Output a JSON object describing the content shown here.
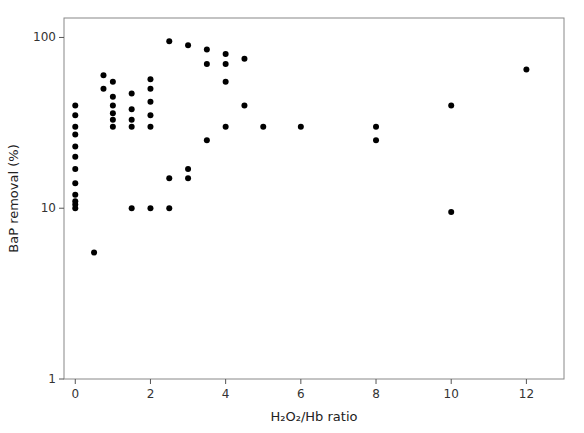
{
  "chart_data": {
    "type": "scatter",
    "x": [
      0,
      0,
      0,
      0,
      0,
      0,
      0,
      0,
      0,
      0,
      0,
      0,
      0.5,
      0.75,
      0.75,
      1.0,
      1.0,
      1.0,
      1.0,
      1.0,
      1.0,
      1.5,
      1.5,
      1.5,
      1.5,
      1.5,
      2.0,
      2.0,
      2.0,
      2.0,
      2.0,
      2.0,
      2.5,
      2.5,
      2.5,
      3.0,
      3.0,
      3.0,
      3.5,
      3.5,
      3.5,
      4.0,
      4.0,
      4.0,
      4.0,
      4.5,
      4.5,
      5.0,
      6.0,
      8.0,
      8.0,
      10.0,
      10.0,
      12.0
    ],
    "values": [
      10.0,
      10.5,
      11.0,
      12.0,
      14.0,
      17.0,
      20.0,
      23.0,
      27.0,
      30.0,
      35.0,
      40.0,
      5.5,
      50.0,
      60.0,
      30.0,
      33.0,
      36.0,
      40.0,
      45.0,
      55.0,
      10.0,
      30.0,
      33.0,
      38.0,
      47.0,
      10.0,
      30.0,
      35.0,
      42.0,
      50.0,
      57.0,
      10.0,
      15.0,
      95.0,
      15.0,
      17.0,
      90.0,
      25.0,
      70.0,
      85.0,
      30.0,
      55.0,
      70.0,
      80.0,
      40.0,
      75.0,
      30.0,
      30.0,
      25.0,
      30.0,
      9.5,
      40.0,
      65.0
    ],
    "xlabel": "H₂O₂/Hb ratio",
    "ylabel": "BaP removal (%)",
    "xlim": [
      -0.3,
      13
    ],
    "ylim": [
      1,
      130
    ],
    "xticks": [
      0,
      2,
      4,
      6,
      8,
      10,
      12
    ],
    "yticks": [
      1,
      10,
      100
    ],
    "log": "y",
    "grid": false,
    "color": "#000000"
  }
}
